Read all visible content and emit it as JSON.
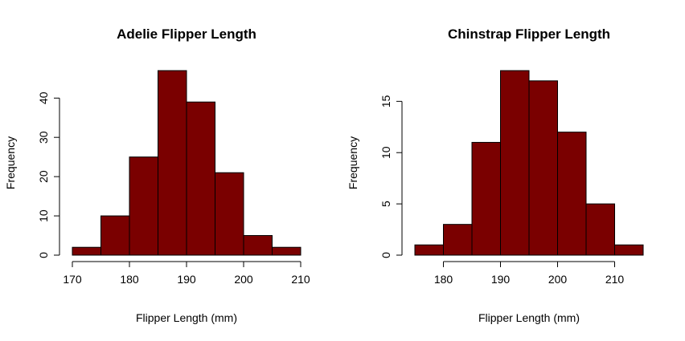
{
  "colors": {
    "bar_fill": "#7a0000",
    "bar_stroke": "#000000",
    "axis": "#000000",
    "background": "#ffffff"
  },
  "chart_data": [
    {
      "type": "bar",
      "title": "Adelie Flipper Length",
      "xlabel": "Flipper Length (mm)",
      "ylabel": "Frequency",
      "bins": [
        {
          "start": 170,
          "end": 175,
          "count": 2
        },
        {
          "start": 175,
          "end": 180,
          "count": 10
        },
        {
          "start": 180,
          "end": 185,
          "count": 25
        },
        {
          "start": 185,
          "end": 190,
          "count": 47
        },
        {
          "start": 190,
          "end": 195,
          "count": 39
        },
        {
          "start": 195,
          "end": 200,
          "count": 21
        },
        {
          "start": 200,
          "end": 205,
          "count": 5
        },
        {
          "start": 205,
          "end": 210,
          "count": 2
        }
      ],
      "xlim": [
        170,
        210
      ],
      "ylim": [
        0,
        47
      ],
      "xticks": [
        170,
        180,
        190,
        200,
        210
      ],
      "yticks": [
        0,
        10,
        20,
        30,
        40
      ],
      "grid": false,
      "legend": "none"
    },
    {
      "type": "bar",
      "title": "Chinstrap Flipper Length",
      "xlabel": "Flipper Length (mm)",
      "ylabel": "Frequency",
      "bins": [
        {
          "start": 175,
          "end": 180,
          "count": 1
        },
        {
          "start": 180,
          "end": 185,
          "count": 3
        },
        {
          "start": 185,
          "end": 190,
          "count": 11
        },
        {
          "start": 190,
          "end": 195,
          "count": 18
        },
        {
          "start": 195,
          "end": 200,
          "count": 17
        },
        {
          "start": 200,
          "end": 205,
          "count": 12
        },
        {
          "start": 205,
          "end": 210,
          "count": 5
        },
        {
          "start": 210,
          "end": 215,
          "count": 1
        }
      ],
      "xlim": [
        175,
        215
      ],
      "ylim": [
        0,
        18
      ],
      "xticks": [
        180,
        190,
        200,
        210
      ],
      "yticks": [
        0,
        5,
        10,
        15
      ],
      "grid": false,
      "legend": "none"
    }
  ]
}
